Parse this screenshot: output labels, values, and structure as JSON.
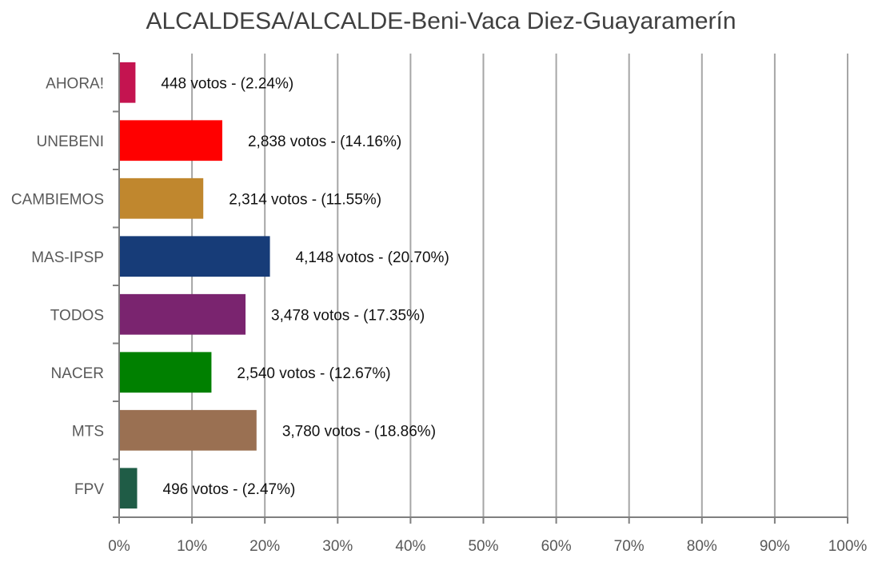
{
  "chart_data": {
    "type": "bar",
    "orientation": "horizontal",
    "title": "ALCALDESA/ALCALDE-Beni-Vaca Diez-Guayaramerín",
    "xlabel": "",
    "ylabel": "",
    "xlim": [
      0,
      100
    ],
    "x_ticks": [
      "0%",
      "10%",
      "20%",
      "30%",
      "40%",
      "50%",
      "60%",
      "70%",
      "80%",
      "90%",
      "100%"
    ],
    "grid": "vertical",
    "legend": "none",
    "bars": [
      {
        "category": "AHORA!",
        "value": 2.24,
        "label": "448 votos - (2.24%)",
        "color": "#C41450"
      },
      {
        "category": "UNEBENI",
        "value": 14.16,
        "label": "2,838 votos - (14.16%)",
        "color": "#FF0000"
      },
      {
        "category": "CAMBIEMOS",
        "value": 11.55,
        "label": "2,314 votos - (11.55%)",
        "color": "#C0872E"
      },
      {
        "category": "MAS-IPSP",
        "value": 20.7,
        "label": "4,148 votos - (20.70%)",
        "color": "#173C78"
      },
      {
        "category": "TODOS",
        "value": 17.35,
        "label": "3,478 votos - (17.35%)",
        "color": "#7A246F"
      },
      {
        "category": "NACER",
        "value": 12.67,
        "label": "2,540 votos - (12.67%)",
        "color": "#008000"
      },
      {
        "category": "MTS",
        "value": 18.86,
        "label": "3,780 votos - (18.86%)",
        "color": "#9A7052"
      },
      {
        "category": "FPV",
        "value": 2.47,
        "label": "496 votos - (2.47%)",
        "color": "#1F5C46"
      }
    ]
  }
}
